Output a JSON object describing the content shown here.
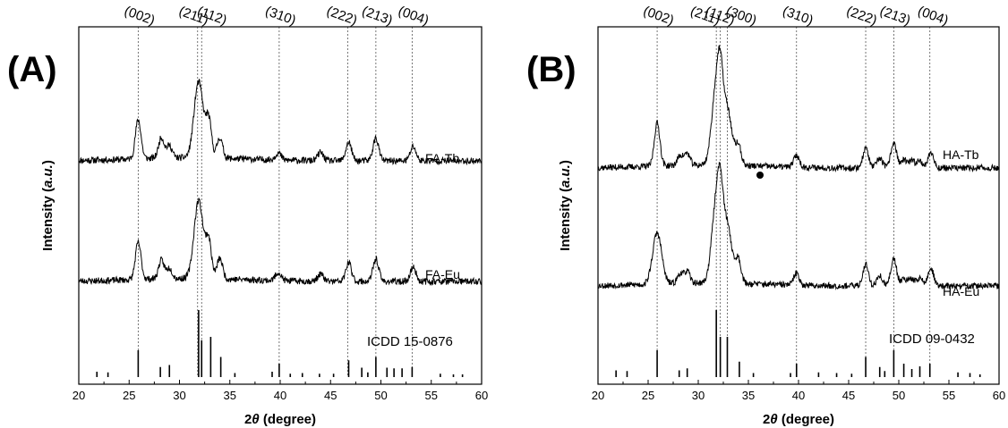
{
  "chart_data": [
    {
      "type": "line",
      "panel_label": "(A)",
      "xlabel_prefix": "2",
      "xlabel_symbol": "θ",
      "xlabel_suffix": " (degree)",
      "ylabel_prefix": "Intensity (",
      "ylabel_italic": "a.u.",
      "ylabel_suffix": ")",
      "xlim": [
        20,
        60
      ],
      "xticks": [
        20,
        25,
        30,
        35,
        40,
        45,
        50,
        55,
        60
      ],
      "miller_indices": [
        {
          "label": "(002)",
          "x": 25.9
        },
        {
          "label": "(211)",
          "x": 31.8
        },
        {
          "label": "(112)",
          "x": 32.2
        },
        {
          "label": "(310)",
          "x": 39.9
        },
        {
          "label": "(222)",
          "x": 46.7
        },
        {
          "label": "(213)",
          "x": 49.5
        },
        {
          "label": "(004)",
          "x": 53.1
        }
      ],
      "series": [
        {
          "name": "FA-Tb",
          "peaks": [
            {
              "x": 25.9,
              "y": 1.9
            },
            {
              "x": 28.2,
              "y": 1.0
            },
            {
              "x": 29.0,
              "y": 0.6
            },
            {
              "x": 31.9,
              "y": 3.7
            },
            {
              "x": 32.9,
              "y": 1.8
            },
            {
              "x": 34.0,
              "y": 1.0
            },
            {
              "x": 39.8,
              "y": 0.35
            },
            {
              "x": 44.0,
              "y": 0.4
            },
            {
              "x": 46.8,
              "y": 0.9
            },
            {
              "x": 49.5,
              "y": 1.1
            },
            {
              "x": 53.2,
              "y": 0.7
            }
          ]
        },
        {
          "name": "FA-Eu",
          "peaks": [
            {
              "x": 25.9,
              "y": 1.8
            },
            {
              "x": 28.2,
              "y": 0.9
            },
            {
              "x": 29.0,
              "y": 0.5
            },
            {
              "x": 31.9,
              "y": 3.8
            },
            {
              "x": 32.9,
              "y": 1.8
            },
            {
              "x": 34.0,
              "y": 1.0
            },
            {
              "x": 39.8,
              "y": 0.4
            },
            {
              "x": 44.0,
              "y": 0.35
            },
            {
              "x": 46.8,
              "y": 0.9
            },
            {
              "x": 49.5,
              "y": 1.1
            },
            {
              "x": 53.2,
              "y": 0.7
            }
          ]
        }
      ],
      "reference": {
        "name": "ICDD 15-0876",
        "lines": [
          {
            "x": 21.8,
            "y": 0.08
          },
          {
            "x": 22.9,
            "y": 0.07
          },
          {
            "x": 25.9,
            "y": 0.4
          },
          {
            "x": 28.1,
            "y": 0.15
          },
          {
            "x": 29.0,
            "y": 0.18
          },
          {
            "x": 31.9,
            "y": 1.0
          },
          {
            "x": 32.2,
            "y": 0.55
          },
          {
            "x": 33.1,
            "y": 0.6
          },
          {
            "x": 34.1,
            "y": 0.3
          },
          {
            "x": 35.5,
            "y": 0.06
          },
          {
            "x": 39.2,
            "y": 0.08
          },
          {
            "x": 39.9,
            "y": 0.2
          },
          {
            "x": 41.0,
            "y": 0.05
          },
          {
            "x": 42.2,
            "y": 0.06
          },
          {
            "x": 43.9,
            "y": 0.05
          },
          {
            "x": 45.3,
            "y": 0.05
          },
          {
            "x": 46.8,
            "y": 0.25
          },
          {
            "x": 48.1,
            "y": 0.14
          },
          {
            "x": 48.7,
            "y": 0.07
          },
          {
            "x": 49.5,
            "y": 0.3
          },
          {
            "x": 50.6,
            "y": 0.14
          },
          {
            "x": 51.3,
            "y": 0.13
          },
          {
            "x": 52.1,
            "y": 0.13
          },
          {
            "x": 53.1,
            "y": 0.15
          },
          {
            "x": 55.9,
            "y": 0.05
          },
          {
            "x": 57.2,
            "y": 0.04
          },
          {
            "x": 58.1,
            "y": 0.04
          }
        ]
      }
    },
    {
      "type": "line",
      "panel_label": "(B)",
      "xlabel_prefix": "2",
      "xlabel_symbol": "θ",
      "xlabel_suffix": " (degree)",
      "ylabel_prefix": "Intensity (",
      "ylabel_italic": "a.u.",
      "ylabel_suffix": ")",
      "xlim": [
        20,
        60
      ],
      "xticks": [
        20,
        25,
        30,
        35,
        40,
        45,
        50,
        55,
        60
      ],
      "miller_indices": [
        {
          "label": "(002)",
          "x": 25.9
        },
        {
          "label": "(211)",
          "x": 31.8
        },
        {
          "label": "(112)",
          "x": 32.2
        },
        {
          "label": "(300)",
          "x": 32.9
        },
        {
          "label": "(310)",
          "x": 39.8
        },
        {
          "label": "(222)",
          "x": 46.7
        },
        {
          "label": "(213)",
          "x": 49.5
        },
        {
          "label": "(004)",
          "x": 53.1
        }
      ],
      "series": [
        {
          "name": "HA-Tb",
          "peaks": [
            {
              "x": 25.9,
              "y": 2.2
            },
            {
              "x": 28.2,
              "y": 0.5
            },
            {
              "x": 28.9,
              "y": 0.6
            },
            {
              "x": 31.8,
              "y": 3.9
            },
            {
              "x": 32.2,
              "y": 2.4
            },
            {
              "x": 32.9,
              "y": 2.8
            },
            {
              "x": 34.0,
              "y": 1.0
            },
            {
              "x": 39.8,
              "y": 0.6
            },
            {
              "x": 46.7,
              "y": 1.0
            },
            {
              "x": 48.1,
              "y": 0.5
            },
            {
              "x": 49.5,
              "y": 1.3
            },
            {
              "x": 50.5,
              "y": 0.4
            },
            {
              "x": 51.3,
              "y": 0.35
            },
            {
              "x": 52.1,
              "y": 0.4
            },
            {
              "x": 53.2,
              "y": 0.8
            }
          ]
        },
        {
          "name": "HA-Eu",
          "peaks": [
            {
              "x": 25.9,
              "y": 2.6
            },
            {
              "x": 28.2,
              "y": 0.5
            },
            {
              "x": 28.9,
              "y": 0.6
            },
            {
              "x": 31.8,
              "y": 4.0
            },
            {
              "x": 32.2,
              "y": 2.4
            },
            {
              "x": 32.9,
              "y": 2.9
            },
            {
              "x": 34.0,
              "y": 1.2
            },
            {
              "x": 39.8,
              "y": 0.6
            },
            {
              "x": 46.7,
              "y": 1.1
            },
            {
              "x": 48.1,
              "y": 0.5
            },
            {
              "x": 49.5,
              "y": 1.4
            },
            {
              "x": 50.5,
              "y": 0.4
            },
            {
              "x": 51.3,
              "y": 0.35
            },
            {
              "x": 52.1,
              "y": 0.4
            },
            {
              "x": 53.2,
              "y": 0.9
            }
          ]
        }
      ],
      "reference": {
        "name": "ICDD 09-0432",
        "lines": [
          {
            "x": 21.8,
            "y": 0.1
          },
          {
            "x": 22.9,
            "y": 0.09
          },
          {
            "x": 25.9,
            "y": 0.4
          },
          {
            "x": 28.1,
            "y": 0.1
          },
          {
            "x": 28.9,
            "y": 0.13
          },
          {
            "x": 31.8,
            "y": 1.0
          },
          {
            "x": 32.2,
            "y": 0.6
          },
          {
            "x": 32.9,
            "y": 0.6
          },
          {
            "x": 34.1,
            "y": 0.23
          },
          {
            "x": 35.5,
            "y": 0.06
          },
          {
            "x": 39.2,
            "y": 0.06
          },
          {
            "x": 39.8,
            "y": 0.2
          },
          {
            "x": 42.0,
            "y": 0.07
          },
          {
            "x": 43.8,
            "y": 0.06
          },
          {
            "x": 45.3,
            "y": 0.05
          },
          {
            "x": 46.7,
            "y": 0.3
          },
          {
            "x": 48.1,
            "y": 0.15
          },
          {
            "x": 48.6,
            "y": 0.09
          },
          {
            "x": 49.5,
            "y": 0.4
          },
          {
            "x": 50.5,
            "y": 0.2
          },
          {
            "x": 51.3,
            "y": 0.12
          },
          {
            "x": 52.1,
            "y": 0.16
          },
          {
            "x": 53.1,
            "y": 0.2
          },
          {
            "x": 55.9,
            "y": 0.07
          },
          {
            "x": 57.1,
            "y": 0.06
          },
          {
            "x": 58.1,
            "y": 0.04
          }
        ]
      }
    }
  ]
}
